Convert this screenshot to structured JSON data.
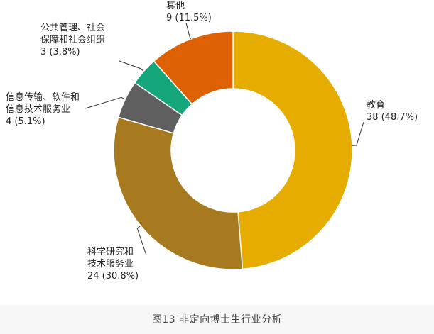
{
  "chart_data": {
    "type": "pie",
    "donut": true,
    "categories": [
      "教育",
      "科学研究和技术服务业",
      "信息传输、软件和信息技术服务业",
      "公共管理、社会保障和社会组织",
      "其他"
    ],
    "series": [
      {
        "values": [
          38,
          24,
          4,
          3,
          9
        ],
        "percents": [
          "48.7%",
          "30.8%",
          "5.1%",
          "3.8%",
          "11.5%"
        ],
        "colors": [
          "#e6ac00",
          "#a77a20",
          "#5f5f5f",
          "#16a67b",
          "#dd6003"
        ]
      }
    ],
    "labels": [
      {
        "lines": [
          "教育",
          "38 (48.7%)"
        ]
      },
      {
        "lines": [
          "科学研究和",
          "技术服务业",
          "24 (30.8%)"
        ]
      },
      {
        "lines": [
          "信息传输、软件和",
          "信息技术服务业",
          "4 (5.1%)"
        ]
      },
      {
        "lines": [
          "公共管理、社会",
          "保障和社会组织",
          "3 (3.8%)"
        ]
      },
      {
        "lines": [
          "其他",
          "9 (11.5%)"
        ]
      }
    ],
    "legend": "none"
  },
  "caption": "图13  非定向博士生行业分析"
}
